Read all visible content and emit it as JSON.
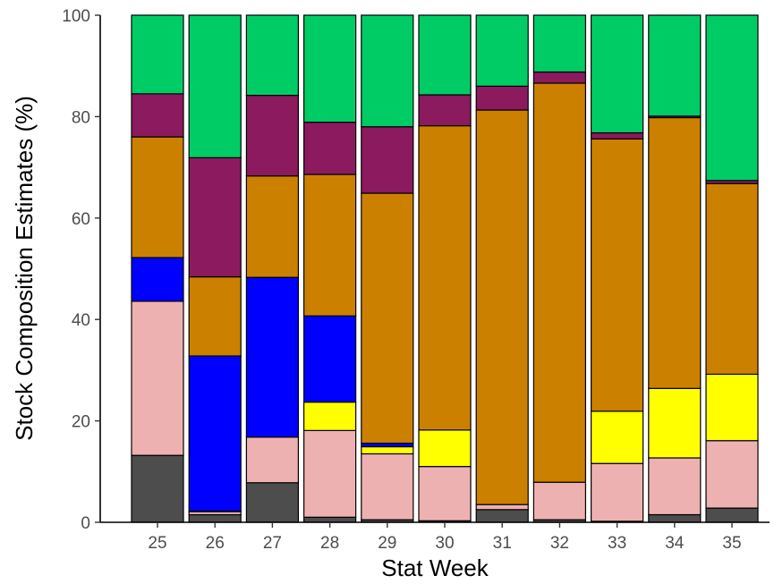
{
  "chart_data": {
    "type": "bar",
    "stacked": true,
    "title": "",
    "xlabel": "Stat Week",
    "ylabel": "Stock Composition Estimates (%)",
    "ylim": [
      0,
      100
    ],
    "yticks": [
      "0",
      "20",
      "40",
      "60",
      "80",
      "100"
    ],
    "grid": false,
    "legend": "none",
    "categories": [
      "25",
      "26",
      "27",
      "28",
      "29",
      "30",
      "31",
      "32",
      "33",
      "34",
      "35"
    ],
    "series": [
      {
        "color": "#4d4d4d",
        "values": [
          13.2,
          1.5,
          7.8,
          1.0,
          0.5,
          0.3,
          2.5,
          0.5,
          0.2,
          1.5,
          2.8
        ]
      },
      {
        "color": "#eeb1b1",
        "values": [
          30.4,
          0.6,
          9.0,
          17.1,
          13.0,
          10.7,
          1.0,
          7.4,
          11.4,
          11.2,
          13.3
        ]
      },
      {
        "color": "#ffff00",
        "values": [
          0.0,
          0.1,
          0.0,
          5.6,
          1.4,
          7.2,
          0.0,
          0.0,
          10.3,
          13.7,
          13.1
        ]
      },
      {
        "color": "#0000ff",
        "values": [
          8.6,
          30.6,
          31.5,
          17.0,
          0.7,
          0.0,
          0.0,
          0.0,
          0.0,
          0.0,
          0.0
        ]
      },
      {
        "color": "#cc8000",
        "values": [
          23.8,
          15.6,
          20.0,
          27.9,
          49.3,
          60.0,
          77.8,
          78.7,
          53.7,
          53.4,
          37.6
        ]
      },
      {
        "color": "#8b1a5e",
        "values": [
          8.5,
          23.5,
          15.9,
          10.3,
          13.1,
          6.1,
          4.7,
          2.2,
          1.2,
          0.3,
          0.6
        ]
      },
      {
        "color": "#00cc66",
        "values": [
          15.5,
          28.1,
          15.8,
          21.1,
          22.0,
          15.7,
          14.0,
          11.2,
          23.2,
          19.9,
          32.6
        ]
      }
    ]
  }
}
